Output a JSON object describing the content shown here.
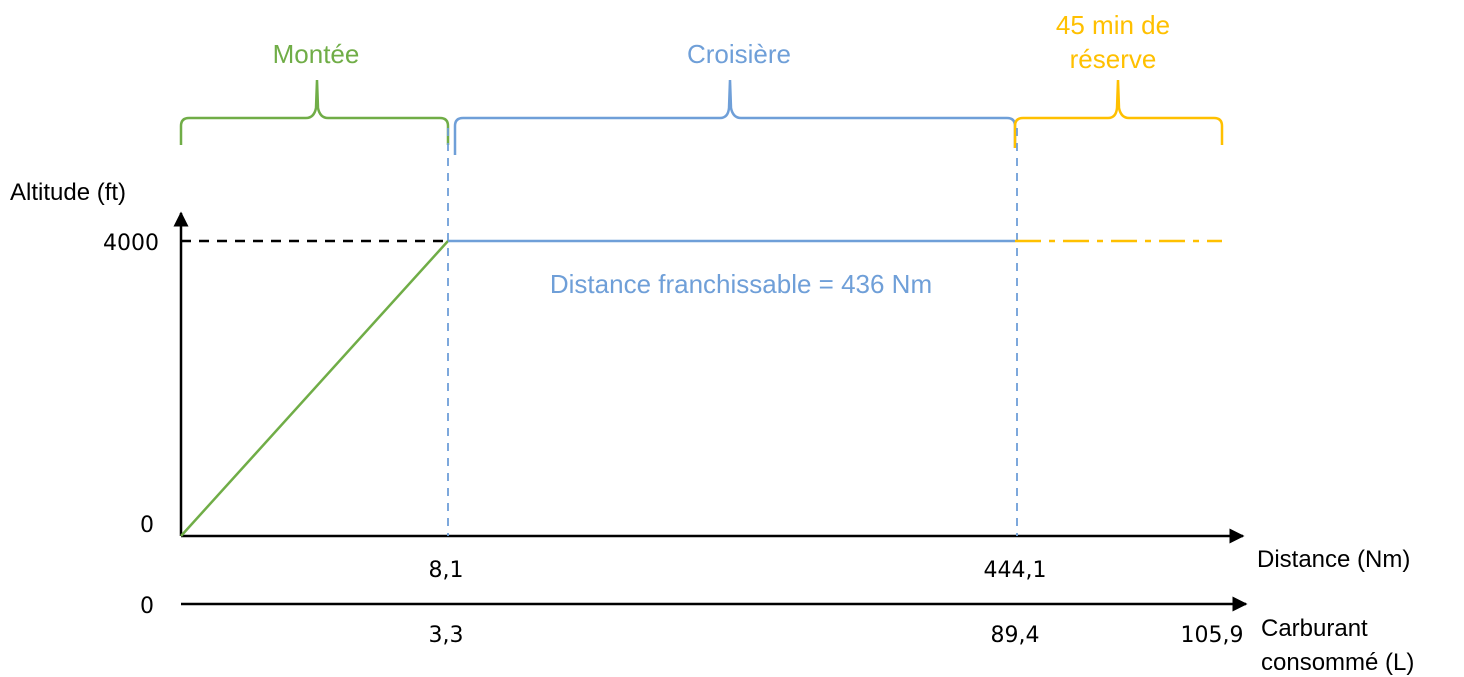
{
  "phases": {
    "climb": {
      "label": "Montée",
      "color": "#70ad47"
    },
    "cruise": {
      "label": "Croisière",
      "color": "#6f9fd8"
    },
    "reserve": {
      "label_line1": "45 min de",
      "label_line2": "réserve",
      "color": "#ffc000"
    }
  },
  "axes": {
    "y_label": "Altitude (ft)",
    "y_ticks": {
      "top": "4000",
      "bottom": "0"
    },
    "distance_label": "Distance (Nm)",
    "distance_ticks": {
      "climb_end": "8,1",
      "cruise_end": "444,1"
    },
    "fuel_label_line1": "Carburant",
    "fuel_label_line2": "consommé (L)",
    "fuel_ticks": {
      "start": "0",
      "climb_end": "3,3",
      "cruise_end": "89,4",
      "reserve_end": "105,9"
    }
  },
  "annotation": {
    "range_text": "Distance franchissable = 436 Nm"
  },
  "colors": {
    "axis": "#000000",
    "guide": "#000000"
  }
}
